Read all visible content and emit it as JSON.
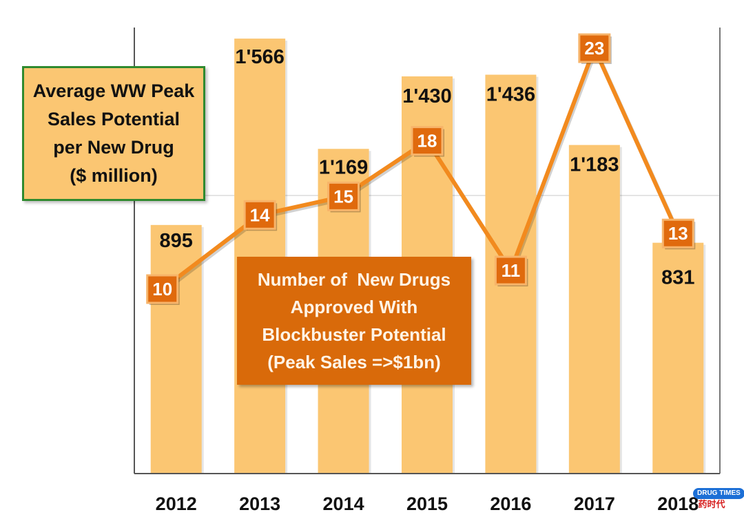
{
  "chart_data": {
    "type": "bar",
    "categories": [
      "2012",
      "2013",
      "2014",
      "2015",
      "2016",
      "2017",
      "2018"
    ],
    "series": [
      {
        "name": "Average WW Peak Sales Potential per New Drug ($ million)",
        "type": "bar",
        "values": [
          895,
          1566,
          1169,
          1430,
          1436,
          1183,
          831
        ],
        "labels": [
          "895",
          "1'566",
          "1'169",
          "1'430",
          "1'436",
          "1'183",
          "831"
        ],
        "color": "#fbc672"
      },
      {
        "name": "Number of New Drugs Approved With Blockbuster Potential (Peak Sales =>$1bn)",
        "type": "line",
        "values": [
          10,
          14,
          15,
          18,
          11,
          23,
          13
        ],
        "color": "#f28a1e",
        "marker_color": "#e06a0d"
      }
    ],
    "bar_axis_range": [
      0,
      1700
    ],
    "line_axis_range": [
      0,
      24
    ],
    "grid": true,
    "legend_placement": "top-left"
  },
  "legend_bar": {
    "lines": [
      "Average WW Peak",
      "Sales Potential",
      "per New Drug",
      "($ million)"
    ]
  },
  "legend_line": {
    "lines": [
      "Number of  New Drugs",
      "Approved With",
      "Blockbuster Potential",
      "(Peak Sales =>$1bn)"
    ]
  },
  "watermark": {
    "logo_text": "DRUG TIMES",
    "cn_text": "药时代"
  },
  "colors": {
    "bar_fill": "#fbc672",
    "line": "#f28a1e",
    "marker_fill": "#e06a0d",
    "marker_border": "#f7b46a",
    "callout_fill": "#d96a0a",
    "legend_border": "#2f8a2f",
    "axis": "#555555",
    "grid": "#c8c8c8"
  }
}
